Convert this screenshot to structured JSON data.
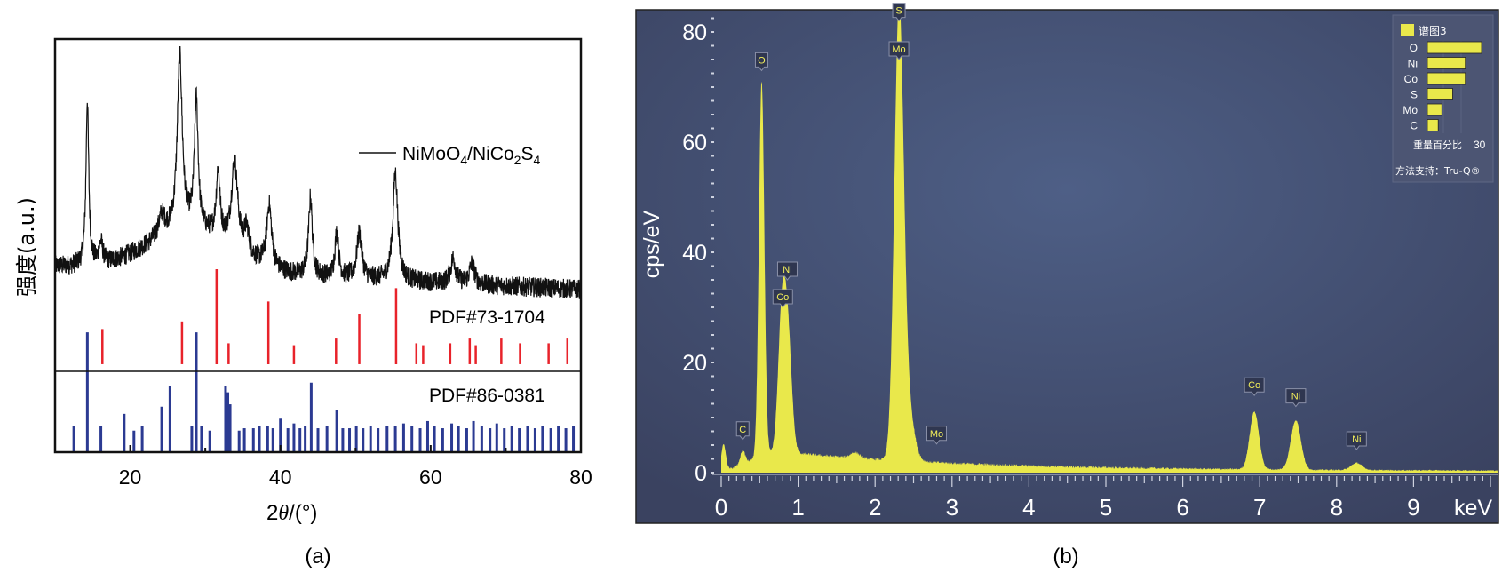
{
  "chart_data": [
    {
      "panel": "(a)",
      "type": "line",
      "xlabel_prefix": "2",
      "xlabel_theta": "θ",
      "xlabel_suffix": "/(°)",
      "ylabel": "强度(a.u.)",
      "xlim": [
        10,
        80
      ],
      "ylim": [
        0,
        100
      ],
      "xticks": [
        20,
        40,
        60,
        80
      ],
      "legend": {
        "label_main": "NiMoO",
        "sub1": "4",
        "mid": "/NiCo",
        "sub2": "2",
        "mid2": "S",
        "sub3": "4",
        "placement": "top-right"
      },
      "series": {
        "name": "NiMoO4/NiCo2S4",
        "color": "#111111",
        "baseline": {
          "start": 45,
          "slope": -0.08,
          "hump_center": 28,
          "hump_width": 8,
          "hump_height": 10
        },
        "noise": 2.4,
        "peaks": [
          [
            14.3,
            40,
            0.22
          ],
          [
            16.1,
            5,
            0.3
          ],
          [
            24.2,
            5,
            0.5
          ],
          [
            26.6,
            42,
            0.4
          ],
          [
            28.8,
            31,
            0.3
          ],
          [
            31.7,
            16,
            0.3
          ],
          [
            33.9,
            21,
            0.5
          ],
          [
            35.5,
            6,
            0.4
          ],
          [
            38.5,
            15,
            0.4
          ],
          [
            44.0,
            19,
            0.3
          ],
          [
            47.5,
            11,
            0.3
          ],
          [
            50.5,
            11,
            0.4
          ],
          [
            55.3,
            26,
            0.4
          ],
          [
            63.0,
            6,
            0.4
          ],
          [
            65.5,
            5,
            0.4
          ]
        ]
      },
      "references": [
        {
          "name": "PDF#73-1704",
          "color": "#e8222a",
          "baseline": 21.3,
          "scale": 23,
          "lines": [
            [
              16.3,
              37
            ],
            [
              26.9,
              45
            ],
            [
              31.5,
              100
            ],
            [
              33.1,
              22
            ],
            [
              38.4,
              66
            ],
            [
              41.8,
              20
            ],
            [
              47.4,
              27
            ],
            [
              50.5,
              53
            ],
            [
              55.4,
              80
            ],
            [
              58.1,
              22
            ],
            [
              59.0,
              20
            ],
            [
              62.6,
              22
            ],
            [
              65.2,
              27
            ],
            [
              66.0,
              20
            ],
            [
              69.4,
              27
            ],
            [
              71.9,
              22
            ],
            [
              75.7,
              22
            ],
            [
              78.2,
              27
            ]
          ]
        },
        {
          "name": "PDF#86-0381",
          "color": "#2b3a92",
          "baseline": 0,
          "scale": 29,
          "lines": [
            [
              12.5,
              22
            ],
            [
              14.3,
              100
            ],
            [
              16.1,
              22
            ],
            [
              19.2,
              32
            ],
            [
              20.5,
              18
            ],
            [
              21.6,
              22
            ],
            [
              24.2,
              38
            ],
            [
              25.3,
              55
            ],
            [
              28.2,
              22
            ],
            [
              28.8,
              100
            ],
            [
              29.5,
              22
            ],
            [
              30.6,
              18
            ],
            [
              32.7,
              55
            ],
            [
              33.0,
              50
            ],
            [
              33.3,
              40
            ],
            [
              34.5,
              18
            ],
            [
              35.2,
              20
            ],
            [
              36.4,
              20
            ],
            [
              37.2,
              22
            ],
            [
              38.3,
              22
            ],
            [
              39.0,
              20
            ],
            [
              40.0,
              28
            ],
            [
              41.0,
              20
            ],
            [
              41.8,
              24
            ],
            [
              42.6,
              20
            ],
            [
              43.3,
              22
            ],
            [
              44.1,
              58
            ],
            [
              45.0,
              20
            ],
            [
              46.2,
              22
            ],
            [
              47.5,
              35
            ],
            [
              48.3,
              20
            ],
            [
              49.2,
              20
            ],
            [
              50.1,
              22
            ],
            [
              51.0,
              20
            ],
            [
              52.0,
              22
            ],
            [
              53.0,
              20
            ],
            [
              54.2,
              22
            ],
            [
              55.3,
              22
            ],
            [
              56.4,
              24
            ],
            [
              57.5,
              22
            ],
            [
              58.6,
              20
            ],
            [
              59.6,
              26
            ],
            [
              60.5,
              22
            ],
            [
              61.6,
              20
            ],
            [
              62.8,
              24
            ],
            [
              63.7,
              22
            ],
            [
              64.8,
              20
            ],
            [
              65.7,
              26
            ],
            [
              66.8,
              22
            ],
            [
              67.9,
              20
            ],
            [
              68.8,
              24
            ],
            [
              69.8,
              20
            ],
            [
              70.8,
              22
            ],
            [
              71.8,
              20
            ],
            [
              72.9,
              22
            ],
            [
              73.9,
              20
            ],
            [
              74.9,
              22
            ],
            [
              76.0,
              20
            ],
            [
              77.0,
              22
            ],
            [
              78.0,
              20
            ],
            [
              79.0,
              22
            ]
          ]
        }
      ]
    },
    {
      "panel": "(b)",
      "type": "area",
      "ylabel": "cps/eV",
      "xunit": "keV",
      "xlim": [
        0,
        10
      ],
      "ylim": [
        0,
        85
      ],
      "xticks": [
        0,
        1,
        2,
        3,
        4,
        5,
        6,
        7,
        8,
        9
      ],
      "yticks": [
        0,
        20,
        40,
        60,
        80
      ],
      "color": "#e9e84b",
      "background": {
        "level": 0.3,
        "amp": 3.2,
        "decay": 2.5
      },
      "peaks": [
        [
          0.03,
          5,
          0.03
        ],
        [
          0.28,
          2.5,
          0.03
        ],
        [
          0.525,
          68,
          0.035
        ],
        [
          0.79,
          25,
          0.05
        ],
        [
          0.87,
          19,
          0.05
        ],
        [
          1.74,
          1,
          0.06
        ],
        [
          2.31,
          80,
          0.06
        ],
        [
          2.42,
          10,
          0.08
        ],
        [
          6.93,
          10.5,
          0.06
        ],
        [
          7.47,
          9,
          0.065
        ],
        [
          8.26,
          1.3,
          0.07
        ]
      ],
      "annotations": [
        {
          "label": "S",
          "x": 2.31,
          "y": 82
        },
        {
          "label": "Mo",
          "x": 2.31,
          "y": 75
        },
        {
          "label": "O",
          "x": 0.525,
          "y": 73
        },
        {
          "label": "Ni",
          "x": 0.86,
          "y": 35
        },
        {
          "label": "Co",
          "x": 0.8,
          "y": 30
        },
        {
          "label": "C",
          "x": 0.28,
          "y": 6
        },
        {
          "label": "Mo",
          "x": 2.8,
          "y": 5.2
        },
        {
          "label": "Co",
          "x": 6.93,
          "y": 14
        },
        {
          "label": "Ni",
          "x": 7.47,
          "y": 12
        },
        {
          "label": "Ni",
          "x": 8.26,
          "y": 4.2
        }
      ],
      "inset": {
        "title": "谱图3",
        "elements": [
          [
            "O",
            30
          ],
          [
            "Ni",
            21
          ],
          [
            "Co",
            21
          ],
          [
            "S",
            14
          ],
          [
            "Mo",
            8
          ],
          [
            "C",
            6
          ]
        ],
        "axis_label": "重量百分比",
        "axis_max": "30",
        "footer": "方法支持：Tru-Q®"
      }
    }
  ]
}
